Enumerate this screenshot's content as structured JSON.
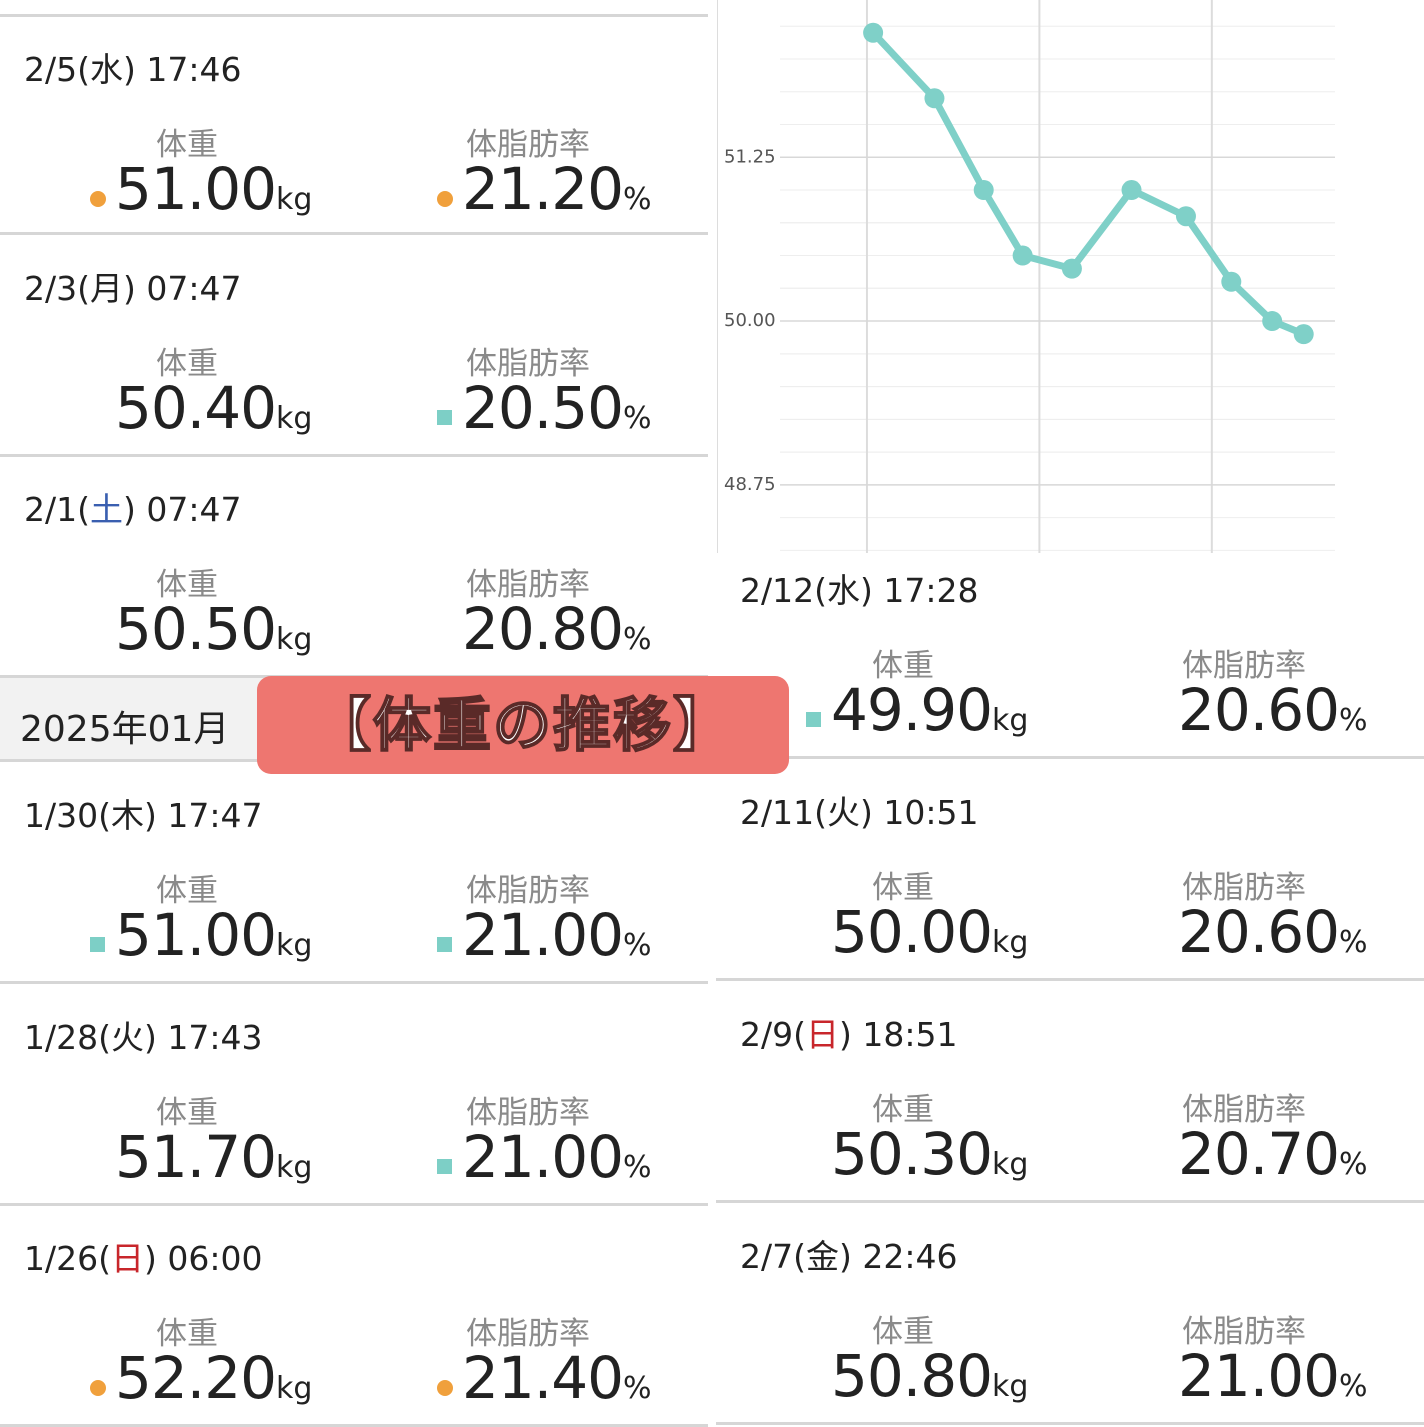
{
  "chart_data": {
    "type": "line",
    "x": [
      26.25,
      28.74,
      30.74,
      32.32,
      34.32,
      36.74,
      38.95,
      40.79,
      42.45,
      43.73
    ],
    "series": [
      {
        "color": "#7fd0c8",
        "values": [
          52.2,
          51.7,
          51.0,
          50.5,
          50.4,
          51.0,
          50.8,
          50.3,
          50.0,
          49.9
        ]
      }
    ],
    "xlim": [
      22.47,
      45.0
    ],
    "xticks": [
      26,
      33,
      40
    ],
    "ylim": [
      48.23,
      52.45
    ],
    "yticks": [
      48.75,
      {
        "value": 50,
        "label": "50.00"
      },
      51.25
    ],
    "grid": true
  },
  "banner": "【体重の推移】",
  "month_header": "2025年01月",
  "left_list": [
    {
      "date": "2/5(",
      "weekday": "水",
      "time": ") 17:46",
      "weight_label": "体重",
      "weight": "51.00",
      "weight_unit": "kg",
      "weight_mark": {
        "shape": "dot",
        "color": "#f0a03c"
      },
      "fat_label": "体脂肪率",
      "fat": "21.20",
      "fat_unit": "%",
      "fat_mark": {
        "shape": "dot",
        "color": "#f0a03c"
      }
    },
    {
      "date": "2/3(",
      "weekday": "月",
      "time": ") 07:47",
      "weight_label": "体重",
      "weight": "50.40",
      "weight_unit": "kg",
      "weight_mark": null,
      "fat_label": "体脂肪率",
      "fat": "20.50",
      "fat_unit": "%",
      "fat_mark": {
        "shape": "square",
        "color": "#7dcfc6"
      }
    },
    {
      "date": "2/1(",
      "weekday": "土",
      "weekday_color": "#3a5fb0",
      "time": ") 07:47",
      "weight_label": "体重",
      "weight": "50.50",
      "weight_unit": "kg",
      "weight_mark": null,
      "fat_label": "体脂肪率",
      "fat": "20.80",
      "fat_unit": "%",
      "fat_mark": null
    },
    {
      "date": "1/30(",
      "weekday": "木",
      "time": ") 17:47",
      "weight_label": "体重",
      "weight": "51.00",
      "weight_unit": "kg",
      "weight_mark": {
        "shape": "square",
        "color": "#7dcfc6"
      },
      "fat_label": "体脂肪率",
      "fat": "21.00",
      "fat_unit": "%",
      "fat_mark": {
        "shape": "square",
        "color": "#7dcfc6"
      }
    },
    {
      "date": "1/28(",
      "weekday": "火",
      "time": ") 17:43",
      "weight_label": "体重",
      "weight": "51.70",
      "weight_unit": "kg",
      "weight_mark": null,
      "fat_label": "体脂肪率",
      "fat": "21.00",
      "fat_unit": "%",
      "fat_mark": {
        "shape": "square",
        "color": "#7dcfc6"
      }
    },
    {
      "date": "1/26(",
      "weekday": "日",
      "weekday_color": "#c8262b",
      "time": ") 06:00",
      "weight_label": "体重",
      "weight": "52.20",
      "weight_unit": "kg",
      "weight_mark": {
        "shape": "dot",
        "color": "#f0a03c"
      },
      "fat_label": "体脂肪率",
      "fat": "21.40",
      "fat_unit": "%",
      "fat_mark": {
        "shape": "dot",
        "color": "#f0a03c"
      }
    }
  ],
  "right_list": [
    {
      "date": "2/12(",
      "weekday": "水",
      "time": ") 17:28",
      "weight_label": "体重",
      "weight": "49.90",
      "weight_unit": "kg",
      "weight_mark": {
        "shape": "square",
        "color": "#7dcfc6"
      },
      "fat_label": "体脂肪率",
      "fat": "20.60",
      "fat_unit": "%",
      "fat_mark": null
    },
    {
      "date": "2/11(",
      "weekday": "火",
      "time": ") 10:51",
      "weight_label": "体重",
      "weight": "50.00",
      "weight_unit": "kg",
      "weight_mark": null,
      "fat_label": "体脂肪率",
      "fat": "20.60",
      "fat_unit": "%",
      "fat_mark": null
    },
    {
      "date": "2/9(",
      "weekday": "日",
      "weekday_color": "#c8262b",
      "time": ") 18:51",
      "weight_label": "体重",
      "weight": "50.30",
      "weight_unit": "kg",
      "weight_mark": null,
      "fat_label": "体脂肪率",
      "fat": "20.70",
      "fat_unit": "%",
      "fat_mark": null
    },
    {
      "date": "2/7(",
      "weekday": "金",
      "time": ") 22:46",
      "weight_label": "体重",
      "weight": "50.80",
      "weight_unit": "kg",
      "weight_mark": null,
      "fat_label": "体脂肪率",
      "fat": "21.00",
      "fat_unit": "%",
      "fat_mark": null
    }
  ]
}
